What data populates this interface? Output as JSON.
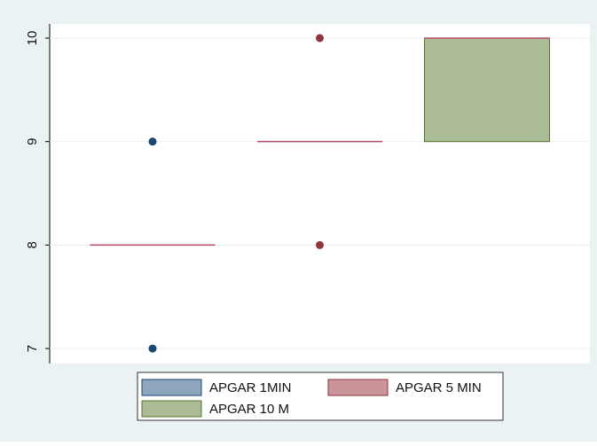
{
  "chart_data": {
    "type": "box",
    "series": [
      {
        "name": "APGAR 1MIN",
        "color": "#1a476f",
        "fill": "#8fa6bf",
        "q1": 8,
        "median": 8,
        "q3": 8,
        "outliers": [
          9,
          7
        ]
      },
      {
        "name": "APGAR 5 MIN",
        "color": "#90353b",
        "fill": "#c9959a",
        "q1": 9,
        "median": 9,
        "q3": 9,
        "outliers": [
          10,
          8
        ]
      },
      {
        "name": "APGAR 10 M",
        "color": "#55752f",
        "fill": "#aabb96",
        "q1": 9,
        "median": 10,
        "q3": 10,
        "outliers": []
      }
    ],
    "median_color": "#b84a62",
    "ylim": [
      6.855,
      10.137
    ],
    "yticks": [
      7,
      8,
      9,
      10
    ],
    "grid": true,
    "legend": "bottom"
  }
}
